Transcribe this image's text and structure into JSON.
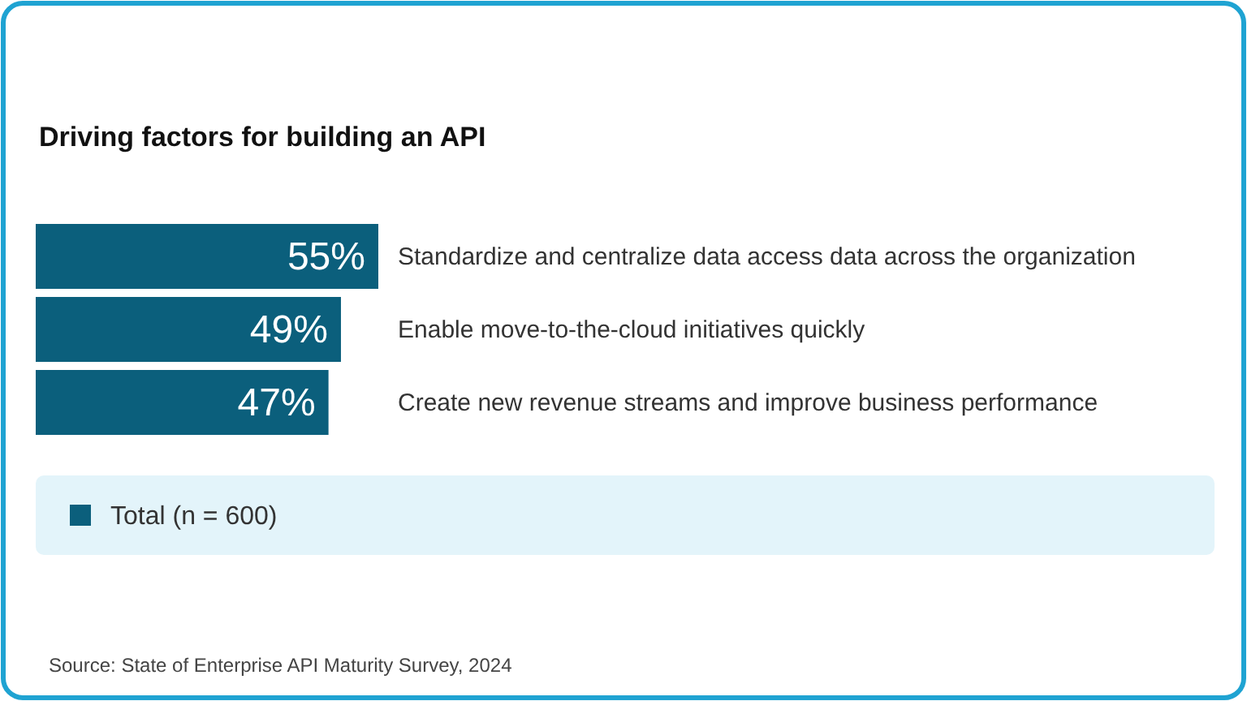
{
  "chart_data": {
    "type": "bar",
    "orientation": "horizontal",
    "title": "Driving factors for building an API",
    "categories": [
      "Standardize and centralize data access data across the organization",
      "Enable move-to-the-cloud initiatives quickly",
      "Create new revenue streams and improve business performance"
    ],
    "series": [
      {
        "name": "Total (n = 600)",
        "color": "#0b5f7c",
        "values": [
          55,
          49,
          47
        ],
        "value_labels": [
          "55%",
          "49%",
          "47%"
        ]
      }
    ],
    "legend": "bottom",
    "annotations": [
      "Source: State of Enterprise API Maturity Survey, 2024"
    ]
  }
}
